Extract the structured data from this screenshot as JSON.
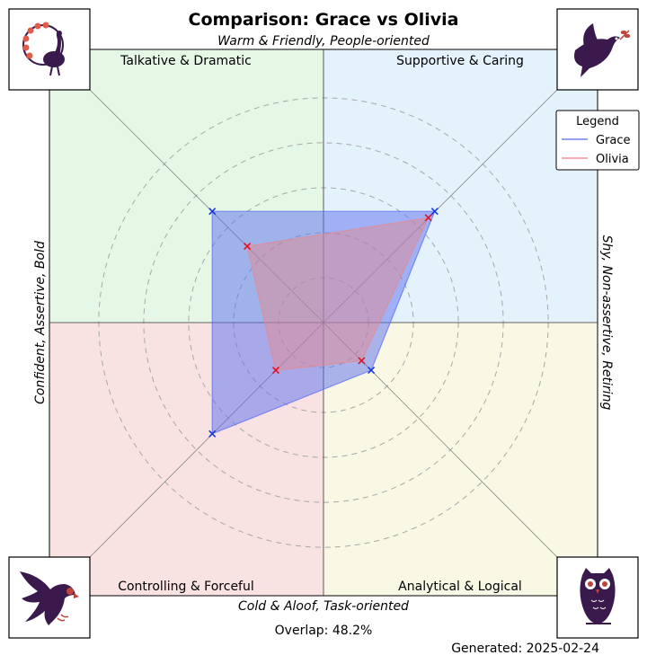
{
  "title": "Comparison: Grace vs Olivia",
  "axis_labels": {
    "top": "Warm & Friendly, People-oriented",
    "bottom": "Cold & Aloof, Task-oriented",
    "left": "Confident, Assertive, Bold",
    "right": "Shy, Non-assertive, Retiring"
  },
  "quadrants": [
    {
      "key": "tl",
      "label": "Talkative & Dramatic",
      "color": "#e5f8e5",
      "icon": "peacock-icon"
    },
    {
      "key": "tr",
      "label": "Supportive & Caring",
      "color": "#e4f2fc",
      "icon": "dove-icon"
    },
    {
      "key": "bl",
      "label": "Controlling & Forceful",
      "color": "#f9e2e2",
      "icon": "eagle-icon"
    },
    {
      "key": "br",
      "label": "Analytical & Logical",
      "color": "#f9f8e5",
      "icon": "owl-icon"
    }
  ],
  "legend": {
    "title": "Legend",
    "entries": [
      {
        "name": "Grace",
        "color": "#6678ee"
      },
      {
        "name": "Olivia",
        "color": "#f08a8a"
      }
    ]
  },
  "overlap_text": "Overlap: 48.2%",
  "generated_text": "Generated: 2025-02-24",
  "chart_data": {
    "type": "radar",
    "title": "Comparison: Grace vs Olivia",
    "axes": [
      "Talkative & Dramatic",
      "Supportive & Caring",
      "Analytical & Logical",
      "Controlling & Forceful"
    ],
    "range": [
      0,
      5
    ],
    "rings": [
      1,
      2,
      3,
      4,
      5
    ],
    "grid": true,
    "legend_position": "right",
    "series": [
      {
        "name": "Grace",
        "color": "#5a6ef0",
        "marker_color": "#1a3ad8",
        "values": [
          3.5,
          3.5,
          1.5,
          3.5
        ]
      },
      {
        "name": "Olivia",
        "color": "#e8888a",
        "marker_color": "#e01020",
        "values": [
          2.4,
          3.3,
          1.2,
          1.5
        ]
      }
    ]
  }
}
